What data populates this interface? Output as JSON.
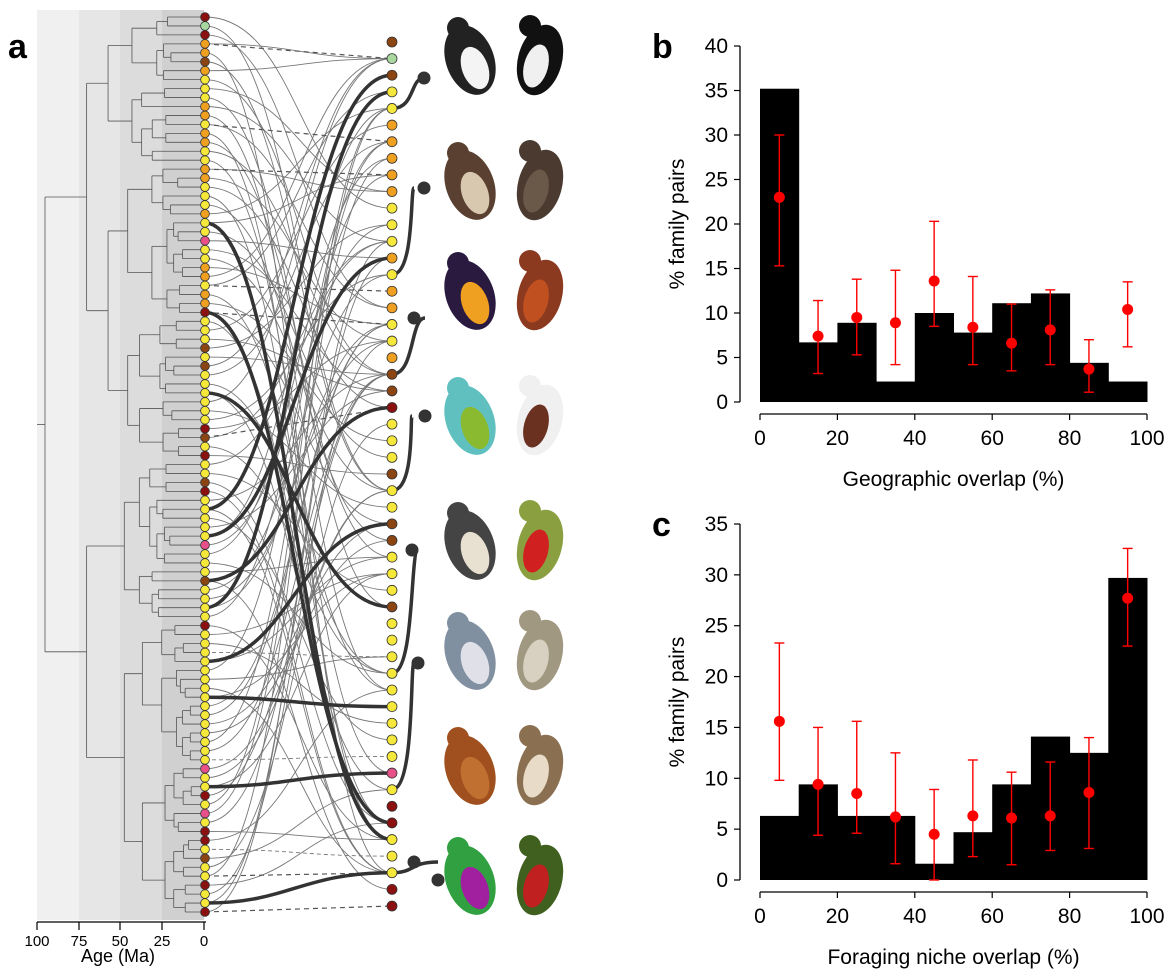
{
  "panel_a": {
    "letter": "a",
    "axis": {
      "ticks": [
        "100",
        "75",
        "50",
        "25",
        "0"
      ],
      "label": "Age (Ma)"
    },
    "bird_illustrations": [
      "razorbill-and-penguin-illustration",
      "swift-and-swallow-illustration",
      "toucan-and-hornbill-illustration",
      "pitta-and-pitta-like-bird-illustration",
      "antshrike-and-bushshrike-illustration",
      "gnatcatcher-and-warbler-illustration",
      "woodcreeper-and-treecreeper-illustration",
      "hummingbird-and-sunbird-illustration"
    ],
    "node_colors": {
      "dark_red": "#8b1010",
      "brown": "#8b4513",
      "orange": "#f0a020",
      "yellow": "#f5e83a",
      "light_green": "#a8d8a0",
      "pink": "#e8508a"
    }
  },
  "chart_data": [
    {
      "panel": "b",
      "type": "bar",
      "xlabel": "Geographic overlap (%)",
      "ylabel": "% family pairs",
      "xlim": [
        0,
        100
      ],
      "ylim": [
        0,
        40
      ],
      "xticks": [
        "0",
        "20",
        "40",
        "60",
        "80",
        "100"
      ],
      "yticks": [
        "0",
        "5",
        "10",
        "15",
        "20",
        "25",
        "30",
        "35",
        "40"
      ],
      "bin_edges": [
        0,
        10,
        20,
        30,
        40,
        50,
        60,
        70,
        80,
        90,
        100
      ],
      "values": [
        35.2,
        6.7,
        8.9,
        2.3,
        10.0,
        7.8,
        11.1,
        12.2,
        4.4,
        2.3
      ],
      "null_model": {
        "x": [
          5,
          15,
          25,
          35,
          45,
          55,
          65,
          75,
          85,
          95
        ],
        "mean": [
          23.0,
          7.4,
          9.5,
          8.9,
          13.6,
          8.4,
          6.6,
          8.1,
          3.7,
          10.4
        ],
        "lower": [
          15.3,
          3.2,
          5.3,
          4.2,
          8.5,
          4.2,
          3.5,
          4.2,
          1.1,
          6.2
        ],
        "upper": [
          30.0,
          11.4,
          13.8,
          14.8,
          20.3,
          14.1,
          11.0,
          12.6,
          7.0,
          13.5
        ]
      },
      "colors": {
        "bars": "#000000",
        "points": "#ff0000"
      }
    },
    {
      "panel": "c",
      "type": "bar",
      "xlabel": "Foraging niche overlap (%)",
      "ylabel": "% family pairs",
      "xlim": [
        0,
        100
      ],
      "ylim": [
        0,
        35
      ],
      "xticks": [
        "0",
        "20",
        "40",
        "60",
        "80",
        "100"
      ],
      "yticks": [
        "0",
        "5",
        "10",
        "15",
        "20",
        "25",
        "30",
        "35"
      ],
      "bin_edges": [
        0,
        10,
        20,
        30,
        40,
        50,
        60,
        70,
        80,
        90,
        100
      ],
      "values": [
        6.3,
        9.4,
        6.3,
        6.3,
        1.6,
        4.7,
        9.4,
        14.1,
        12.5,
        29.7
      ],
      "null_model": {
        "x": [
          5,
          15,
          25,
          35,
          45,
          55,
          65,
          75,
          85,
          95
        ],
        "mean": [
          15.6,
          9.4,
          8.5,
          6.2,
          4.5,
          6.3,
          6.1,
          6.3,
          8.6,
          27.7
        ],
        "lower": [
          9.8,
          4.4,
          4.6,
          1.6,
          0.0,
          2.3,
          1.5,
          2.9,
          3.1,
          23.0
        ],
        "upper": [
          23.3,
          15.0,
          15.6,
          12.5,
          8.9,
          11.8,
          10.6,
          11.6,
          14.0,
          32.6
        ]
      },
      "colors": {
        "bars": "#000000",
        "points": "#ff0000"
      }
    }
  ],
  "labels": {
    "b": "b",
    "c": "c"
  }
}
